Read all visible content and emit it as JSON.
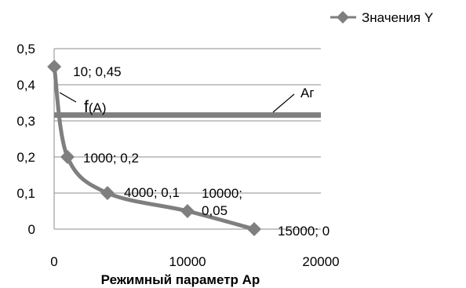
{
  "chart_data": {
    "type": "line",
    "title": "",
    "xlabel": "Режимный параметр Ар",
    "ylabel": "",
    "xlim": [
      0,
      20000
    ],
    "ylim": [
      0,
      0.5
    ],
    "x_ticks": [
      "0",
      "10000",
      "20000"
    ],
    "y_ticks": [
      "0",
      "0,1",
      "0,2",
      "0,3",
      "0,4",
      "0,5"
    ],
    "grid": "horizontal",
    "legend_position": "top-right",
    "series": [
      {
        "name": "Значения Y",
        "color": "#7f7f7f",
        "marker": "diamond",
        "points": [
          {
            "x": 10,
            "y": 0.45,
            "label": "10; 0,45"
          },
          {
            "x": 1000,
            "y": 0.2,
            "label": "1000; 0,2"
          },
          {
            "x": 4000,
            "y": 0.1,
            "label": "4000; 0,1"
          },
          {
            "x": 10000,
            "y": 0.05,
            "label": "10000;\n0,05"
          },
          {
            "x": 15000,
            "y": 0,
            "label": "15000; 0"
          }
        ]
      }
    ],
    "reference_line": {
      "label": "Аг",
      "y": 0.316,
      "color": "#7f7f7f"
    },
    "annotations": [
      {
        "text": "f(А)"
      }
    ]
  }
}
